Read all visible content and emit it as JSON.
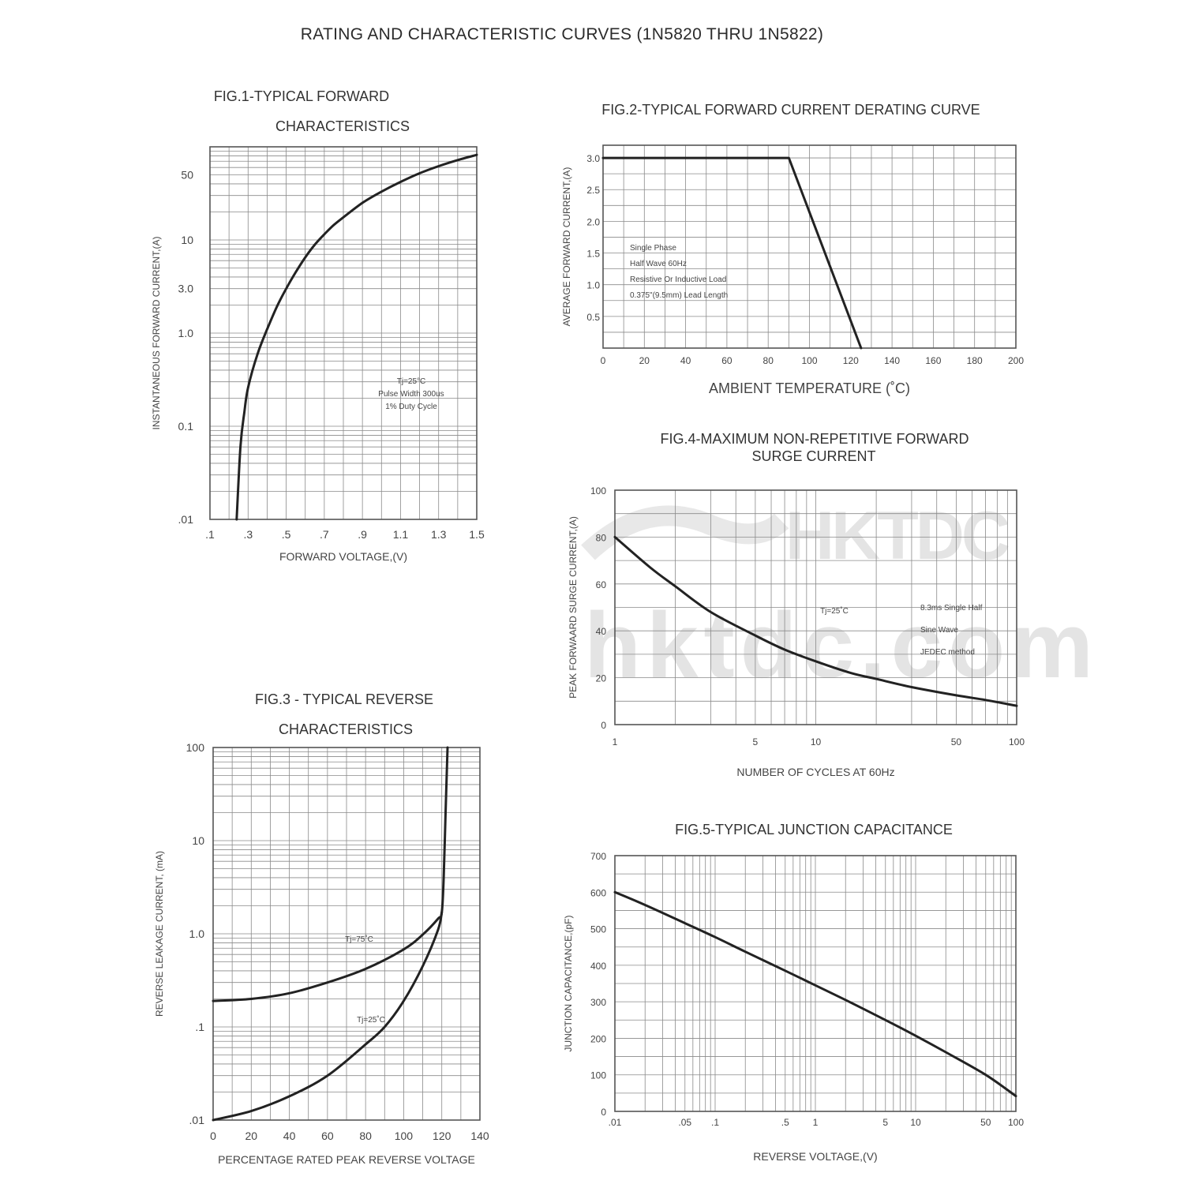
{
  "page": {
    "title": "RATING AND CHARACTERISTIC CURVES (1N5820 THRU 1N5822)",
    "watermark_logo": "HKTDC",
    "watermark_url": "hktdc.com"
  },
  "chart_data": [
    {
      "id": "fig1",
      "type": "line",
      "title": [
        "FIG.1-TYPICAL FORWARD",
        "CHARACTERISTICS"
      ],
      "xlabel": "FORWARD VOLTAGE,(V)",
      "ylabel": "INSTANTANEOUS FORWARD CURRENT,(A)",
      "xscale": "linear",
      "yscale": "log",
      "xlim": [
        0.1,
        1.5
      ],
      "ylim": [
        0.01,
        100
      ],
      "xticks": [
        0.1,
        0.3,
        0.5,
        0.7,
        0.9,
        1.1,
        1.3,
        1.5
      ],
      "xtick_labels": [
        ".1",
        ".3",
        ".5",
        ".7",
        ".9",
        "1.1",
        "1.3",
        "1.5"
      ],
      "yticks": [
        0.01,
        0.1,
        1,
        3,
        10,
        50
      ],
      "ytick_labels": [
        ".01",
        "0.1",
        "1.0",
        "3.0",
        "10",
        "50"
      ],
      "grid": true,
      "annotation": [
        "Tj=25°C",
        "Pulse Width 300us",
        "1% Duty Cycle"
      ],
      "series": [
        {
          "x": [
            0.24,
            0.26,
            0.28,
            0.3,
            0.35,
            0.4,
            0.45,
            0.5,
            0.55,
            0.6,
            0.65,
            0.7,
            0.75,
            0.8,
            0.9,
            1.0,
            1.1,
            1.2,
            1.3,
            1.4,
            1.5
          ],
          "y": [
            0.01,
            0.06,
            0.14,
            0.26,
            0.6,
            1.1,
            1.9,
            3.0,
            4.5,
            6.5,
            8.9,
            11.5,
            14.5,
            17.5,
            25,
            33,
            42,
            52,
            62,
            72,
            82
          ]
        }
      ]
    },
    {
      "id": "fig2",
      "type": "line",
      "title": [
        "FIG.2-TYPICAL FORWARD CURRENT DERATING CURVE"
      ],
      "xlabel": "AMBIENT TEMPERATURE (˚C)",
      "ylabel": "AVERAGE FORWARD CURRENT,(A)",
      "xscale": "linear",
      "yscale": "linear",
      "xlim": [
        0,
        200
      ],
      "ylim": [
        0,
        3.2
      ],
      "xticks": [
        0,
        20,
        40,
        60,
        80,
        100,
        120,
        140,
        160,
        180,
        200
      ],
      "xtick_labels": [
        "0",
        "20",
        "40",
        "60",
        "80",
        "100",
        "120",
        "140",
        "160",
        "180",
        "200"
      ],
      "yticks": [
        0.5,
        1.0,
        1.5,
        2.0,
        2.5,
        3.0
      ],
      "ytick_labels": [
        "0.5",
        "1.0",
        "1.5",
        "2.0",
        "2.5",
        "3.0"
      ],
      "grid": true,
      "annotation": [
        "Single Phase",
        "Half Wave 60Hz",
        "Resistive Or Inductive Load",
        "0.375\"(9.5mm) Lead Length"
      ],
      "series": [
        {
          "x": [
            0,
            90,
            125
          ],
          "y": [
            3.0,
            3.0,
            0
          ]
        }
      ]
    },
    {
      "id": "fig3",
      "type": "line",
      "title": [
        "FIG.3 - TYPICAL REVERSE",
        "CHARACTERISTICS"
      ],
      "xlabel": "PERCENTAGE RATED PEAK REVERSE VOLTAGE",
      "ylabel": "REVERSE LEAKAGE CURRENT, (mA)",
      "xscale": "linear",
      "yscale": "log",
      "xlim": [
        0,
        140
      ],
      "ylim": [
        0.01,
        100
      ],
      "xticks": [
        0,
        20,
        40,
        60,
        80,
        100,
        120,
        140
      ],
      "xtick_labels": [
        "0",
        "20",
        "40",
        "60",
        "80",
        "100",
        "120",
        "140"
      ],
      "yticks": [
        0.01,
        0.1,
        1,
        10,
        100
      ],
      "ytick_labels": [
        ".01",
        ".1",
        "1.0",
        "10",
        "100"
      ],
      "grid": true,
      "series": [
        {
          "name": "Tj=75˚C",
          "x": [
            0,
            20,
            40,
            60,
            80,
            100,
            110,
            118,
            120,
            121,
            122,
            123
          ],
          "y": [
            0.19,
            0.2,
            0.23,
            0.3,
            0.42,
            0.68,
            0.98,
            1.45,
            1.7,
            4.0,
            20,
            100
          ]
        },
        {
          "name": "Tj=25˚C",
          "x": [
            0,
            20,
            40,
            60,
            80,
            90,
            100,
            110,
            118,
            120
          ],
          "y": [
            0.01,
            0.0125,
            0.018,
            0.03,
            0.065,
            0.1,
            0.19,
            0.45,
            1.1,
            1.7
          ]
        }
      ]
    },
    {
      "id": "fig4",
      "type": "line",
      "title": [
        "FIG.4-MAXIMUM NON-REPETITIVE FORWARD",
        "SURGE CURRENT"
      ],
      "xlabel": "NUMBER OF CYCLES AT 60Hz",
      "ylabel": "PEAK FORWAARD SURGE CURRENT,(A)",
      "xscale": "log",
      "yscale": "linear",
      "xlim": [
        1,
        100
      ],
      "ylim": [
        0,
        100
      ],
      "xticks": [
        1,
        5,
        10,
        50,
        100
      ],
      "xtick_labels": [
        "1",
        "5",
        "10",
        "50",
        "100"
      ],
      "yticks": [
        0,
        20,
        40,
        60,
        80,
        100
      ],
      "ytick_labels": [
        "0",
        "20",
        "40",
        "60",
        "80",
        "100"
      ],
      "grid": true,
      "annotation": [
        "Tj=25˚C",
        "8.3ms Single Half",
        "Sine Wave",
        "JEDEC method"
      ],
      "series": [
        {
          "x": [
            1,
            1.5,
            2,
            3,
            5,
            7,
            10,
            15,
            20,
            30,
            50,
            70,
            100
          ],
          "y": [
            80,
            67,
            59,
            48,
            38,
            32,
            27,
            22,
            19.5,
            16,
            12.5,
            10.5,
            8
          ]
        }
      ]
    },
    {
      "id": "fig5",
      "type": "line",
      "title": [
        "FIG.5-TYPICAL JUNCTION CAPACITANCE"
      ],
      "xlabel": "REVERSE VOLTAGE,(V)",
      "ylabel": "JUNCTION CAPACITANCE,(pF)",
      "xscale": "log",
      "yscale": "linear",
      "xlim": [
        0.01,
        100
      ],
      "ylim": [
        0,
        700
      ],
      "xticks": [
        0.01,
        0.05,
        0.1,
        0.5,
        1,
        5,
        10,
        50,
        100
      ],
      "xtick_labels": [
        ".01",
        ".05",
        ".1",
        ".5",
        "1",
        "5",
        "10",
        "50",
        "100"
      ],
      "yticks": [
        0,
        100,
        200,
        300,
        400,
        500,
        600,
        700
      ],
      "ytick_labels": [
        "0",
        "100",
        "200",
        "300",
        "400",
        "500",
        "600",
        "700"
      ],
      "grid": true,
      "series": [
        {
          "x": [
            0.01,
            0.02,
            0.05,
            0.1,
            0.2,
            0.5,
            1,
            2,
            5,
            10,
            20,
            50,
            100
          ],
          "y": [
            600,
            565,
            515,
            477,
            437,
            385,
            345,
            305,
            250,
            207,
            162,
            100,
            42
          ]
        }
      ]
    }
  ]
}
